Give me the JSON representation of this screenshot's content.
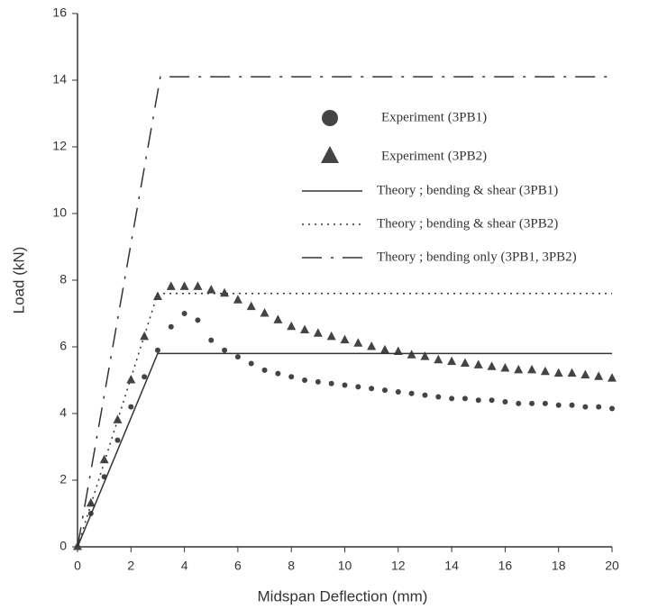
{
  "chart_data": {
    "type": "line",
    "xlabel": "Midspan Deflection (mm)",
    "ylabel": "Load (kN)",
    "xlim": [
      0,
      20
    ],
    "ylim": [
      0,
      16
    ],
    "xticks": [
      0,
      2,
      4,
      6,
      8,
      10,
      12,
      14,
      16,
      18,
      20
    ],
    "yticks": [
      0,
      2,
      4,
      6,
      8,
      10,
      12,
      14,
      16
    ],
    "series": [
      {
        "name": "Experiment (3PB1)",
        "color": "#444444",
        "marker": "circle",
        "x": [
          0,
          0.5,
          1,
          1.5,
          2,
          2.5,
          3,
          3.5,
          4,
          4.5,
          5,
          5.5,
          6,
          6.5,
          7,
          7.5,
          8,
          8.5,
          9,
          9.5,
          10,
          10.5,
          11,
          11.5,
          12,
          12.5,
          13,
          13.5,
          14,
          14.5,
          15,
          15.5,
          16,
          16.5,
          17,
          17.5,
          18,
          18.5,
          19,
          19.5,
          20
        ],
        "values": [
          0,
          1.0,
          2.1,
          3.2,
          4.2,
          5.1,
          5.9,
          6.6,
          7.0,
          6.8,
          6.2,
          5.9,
          5.7,
          5.5,
          5.3,
          5.2,
          5.1,
          5.0,
          4.95,
          4.9,
          4.85,
          4.8,
          4.75,
          4.7,
          4.65,
          4.6,
          4.55,
          4.5,
          4.45,
          4.45,
          4.4,
          4.4,
          4.35,
          4.3,
          4.3,
          4.3,
          4.25,
          4.25,
          4.2,
          4.2,
          4.15
        ]
      },
      {
        "name": "Experiment (3PB2)",
        "color": "#444444",
        "marker": "triangle",
        "x": [
          0,
          0.5,
          1,
          1.5,
          2,
          2.5,
          3,
          3.5,
          4,
          4.5,
          5,
          5.5,
          6,
          6.5,
          7,
          7.5,
          8,
          8.5,
          9,
          9.5,
          10,
          10.5,
          11,
          11.5,
          12,
          12.5,
          13,
          13.5,
          14,
          14.5,
          15,
          15.5,
          16,
          16.5,
          17,
          17.5,
          18,
          18.5,
          19,
          19.5,
          20
        ],
        "values": [
          0,
          1.3,
          2.6,
          3.8,
          5.0,
          6.3,
          7.5,
          7.8,
          7.8,
          7.8,
          7.7,
          7.6,
          7.4,
          7.2,
          7.0,
          6.8,
          6.6,
          6.5,
          6.4,
          6.3,
          6.2,
          6.1,
          6.0,
          5.9,
          5.85,
          5.75,
          5.7,
          5.6,
          5.55,
          5.5,
          5.45,
          5.4,
          5.35,
          5.3,
          5.3,
          5.25,
          5.2,
          5.2,
          5.15,
          5.1,
          5.05
        ]
      },
      {
        "name": "Theory ; bending & shear (3PB1)",
        "color": "#333333",
        "dash": "solid",
        "x": [
          0,
          3,
          20
        ],
        "values": [
          0,
          5.8,
          5.8
        ]
      },
      {
        "name": "Theory ; bending & shear (3PB2)",
        "color": "#333333",
        "dash": "dot",
        "x": [
          0,
          3,
          20
        ],
        "values": [
          0,
          7.6,
          7.6
        ]
      },
      {
        "name": "Theory ; bending only (3PB1, 3PB2)",
        "color": "#333333",
        "dash": "dashdot",
        "x": [
          0,
          3.1,
          20
        ],
        "values": [
          0,
          14.1,
          14.1
        ]
      }
    ]
  }
}
